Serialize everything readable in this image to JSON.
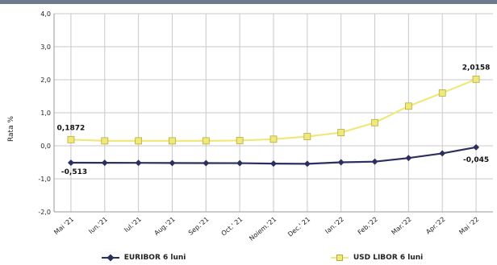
{
  "chart_data": {
    "type": "line",
    "ylabel": "Rata %",
    "ylim": [
      -2.0,
      4.0
    ],
    "yticks": [
      4.0,
      3.0,
      2.0,
      1.0,
      0.0,
      -1.0,
      -2.0
    ],
    "ytick_labels": [
      "4,0",
      "3,0",
      "2,0",
      "1,0",
      "0,0",
      "-1,0",
      "-2,0"
    ],
    "grid": true,
    "legend_position": "bottom",
    "categories": [
      "Mai '21",
      "Iun.'21",
      "Iul.'21",
      "Aug.'21",
      "Sep.'21",
      "Oct.' 21",
      "Noiem.'21",
      "Dec.' 21",
      "Ian.'22",
      "Feb.'22",
      "Mar.'22",
      "Apr.'22",
      "Mai '22"
    ],
    "series": [
      {
        "name": "EURIBOR 6 luni",
        "color": "#2b2f5e",
        "marker": "diamond",
        "values": [
          -0.513,
          -0.515,
          -0.517,
          -0.522,
          -0.524,
          -0.526,
          -0.54,
          -0.545,
          -0.5,
          -0.48,
          -0.37,
          -0.23,
          -0.045
        ]
      },
      {
        "name": "USD LIBOR 6 luni",
        "color": "#efe87a",
        "marker": "square",
        "values": [
          0.1872,
          0.15,
          0.15,
          0.15,
          0.15,
          0.16,
          0.2,
          0.28,
          0.4,
          0.7,
          1.2,
          1.6,
          2.0158
        ]
      }
    ],
    "data_labels": [
      {
        "series": 1,
        "index": 0,
        "text": "0,1872"
      },
      {
        "series": 1,
        "index": 12,
        "text": "2,0158"
      },
      {
        "series": 0,
        "index": 0,
        "text": "-0,513"
      },
      {
        "series": 0,
        "index": 12,
        "text": "-0,045"
      }
    ]
  }
}
